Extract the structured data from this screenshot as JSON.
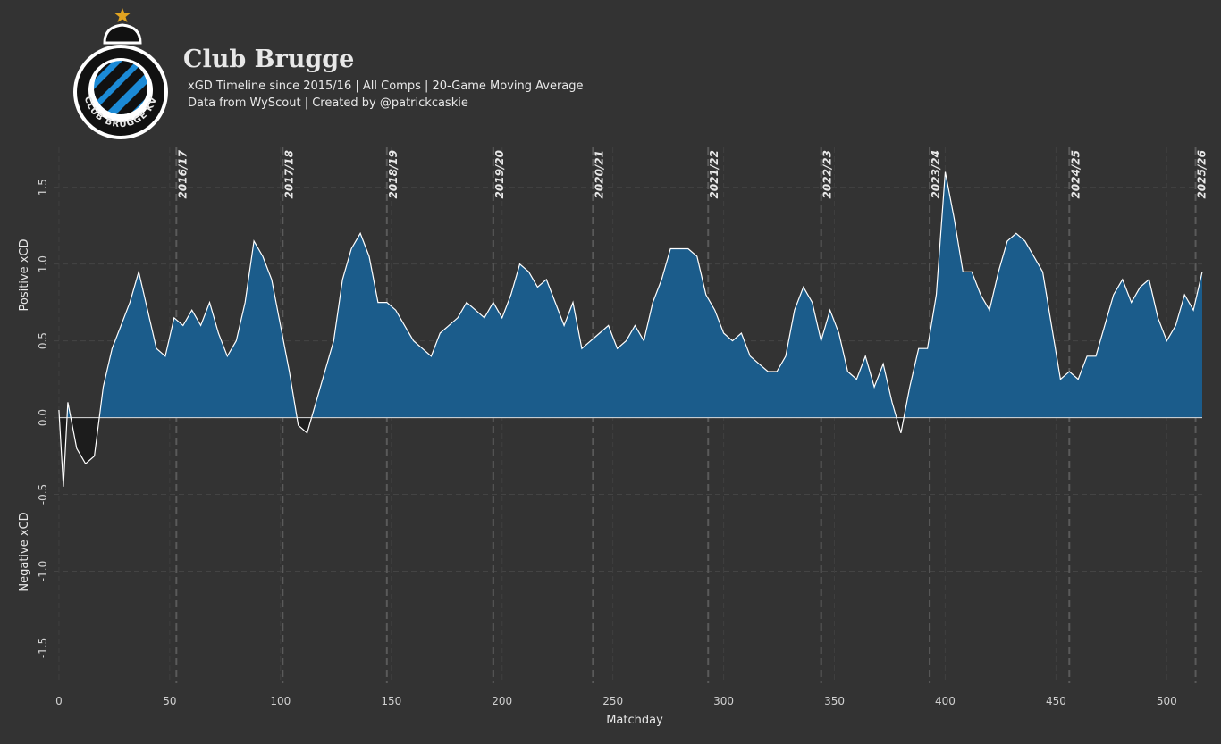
{
  "chart_data": {
    "type": "area",
    "title": "Club Brugge",
    "subtitle": "xGD Timeline since 2015/16 | All Comps | 20-Game Moving Average",
    "caption": "Data from WyScout | Created by @patrickcaskie",
    "logo_text": "CLUB BRUGGE KV",
    "xlabel": "Matchday",
    "ylabel_positive": "Positive xCD",
    "ylabel_negative": "Negative xCD",
    "positive_color": "#1b5c8b",
    "negative_color": "#1c1c1c",
    "line_color": "#ffffff",
    "grid": true,
    "xlim": [
      -2.4,
      516
    ],
    "ylim": [
      -1.73,
      1.76
    ],
    "xticks": [
      0,
      50,
      100,
      150,
      200,
      250,
      300,
      350,
      400,
      450,
      500
    ],
    "yticks": [
      -1.5,
      {
        "value": -1.0,
        "label": "-1.0"
      },
      -0.5,
      {
        "value": 0.0,
        "label": "0.0"
      },
      0.5,
      {
        "value": 1.0,
        "label": "1.0"
      },
      1.5
    ],
    "seasons": [
      {
        "x": 53,
        "label": "2016/17"
      },
      {
        "x": 101,
        "label": "2017/18"
      },
      {
        "x": 148,
        "label": "2018/19"
      },
      {
        "x": 196,
        "label": "2019/20"
      },
      {
        "x": 241,
        "label": "2020/21"
      },
      {
        "x": 293,
        "label": "2021/22"
      },
      {
        "x": 344,
        "label": "2022/23"
      },
      {
        "x": 393,
        "label": "2023/24"
      },
      {
        "x": 456,
        "label": "2024/25"
      },
      {
        "x": 513,
        "label": "2025/26"
      }
    ],
    "x": [
      0,
      2,
      4,
      8,
      12,
      16,
      20,
      24,
      28,
      32,
      36,
      40,
      44,
      48,
      52,
      56,
      60,
      64,
      68,
      72,
      76,
      80,
      84,
      88,
      92,
      96,
      100,
      104,
      108,
      112,
      116,
      120,
      124,
      128,
      132,
      136,
      140,
      144,
      148,
      152,
      156,
      160,
      164,
      168,
      172,
      176,
      180,
      184,
      188,
      192,
      196,
      200,
      204,
      208,
      212,
      216,
      220,
      224,
      228,
      232,
      236,
      240,
      244,
      248,
      252,
      256,
      260,
      264,
      268,
      272,
      276,
      280,
      284,
      288,
      292,
      296,
      300,
      304,
      308,
      312,
      316,
      320,
      324,
      328,
      332,
      336,
      340,
      344,
      348,
      352,
      356,
      360,
      364,
      368,
      372,
      376,
      380,
      384,
      388,
      392,
      396,
      400,
      404,
      408,
      412,
      416,
      420,
      424,
      428,
      432,
      436,
      440,
      444,
      448,
      452,
      456,
      460,
      464,
      468,
      472,
      476,
      480,
      484,
      488,
      492,
      496,
      500,
      504,
      508,
      512,
      516
    ],
    "values": [
      0.05,
      -0.45,
      0.1,
      -0.2,
      -0.3,
      -0.25,
      0.2,
      0.45,
      0.6,
      0.75,
      0.95,
      0.7,
      0.45,
      0.4,
      0.65,
      0.6,
      0.7,
      0.6,
      0.75,
      0.55,
      0.4,
      0.5,
      0.75,
      1.15,
      1.05,
      0.9,
      0.6,
      0.3,
      -0.05,
      -0.1,
      0.1,
      0.3,
      0.5,
      0.9,
      1.1,
      1.2,
      1.05,
      0.75,
      0.75,
      0.7,
      0.6,
      0.5,
      0.45,
      0.4,
      0.55,
      0.6,
      0.65,
      0.75,
      0.7,
      0.65,
      0.75,
      0.65,
      0.8,
      1.0,
      0.95,
      0.85,
      0.9,
      0.75,
      0.6,
      0.75,
      0.45,
      0.5,
      0.55,
      0.6,
      0.45,
      0.5,
      0.6,
      0.5,
      0.75,
      0.9,
      1.1,
      1.1,
      1.1,
      1.05,
      0.8,
      0.7,
      0.55,
      0.5,
      0.55,
      0.4,
      0.35,
      0.3,
      0.3,
      0.4,
      0.7,
      0.85,
      0.75,
      0.5,
      0.7,
      0.55,
      0.3,
      0.25,
      0.4,
      0.2,
      0.35,
      0.1,
      -0.1,
      0.2,
      0.45,
      0.45,
      0.8,
      1.6,
      1.3,
      0.95,
      0.95,
      0.8,
      0.7,
      0.95,
      1.15,
      1.2,
      1.15,
      1.05,
      0.95,
      0.6,
      0.25,
      0.3,
      0.25,
      0.4,
      0.4,
      0.6,
      0.8,
      0.9,
      0.75,
      0.85,
      0.9,
      0.65,
      0.5,
      0.6,
      0.8,
      0.7,
      0.95
    ]
  }
}
